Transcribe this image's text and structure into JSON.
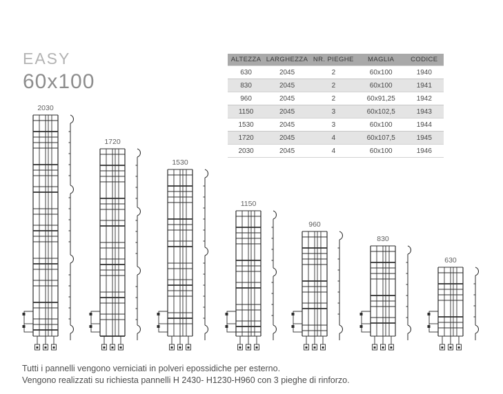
{
  "title": {
    "series": "EASY",
    "mesh": "60x100"
  },
  "table": {
    "headers": [
      "ALTEZZA",
      "LARGHEZZA",
      "NR. PIEGHE",
      "MAGLIA",
      "CODICE"
    ],
    "rows": [
      [
        "630",
        "2045",
        "2",
        "60x100",
        "1940"
      ],
      [
        "830",
        "2045",
        "2",
        "60x100",
        "1941"
      ],
      [
        "960",
        "2045",
        "2",
        "60x91,25",
        "1942"
      ],
      [
        "1150",
        "2045",
        "3",
        "60x102,5",
        "1943"
      ],
      [
        "1530",
        "2045",
        "3",
        "60x100",
        "1944"
      ],
      [
        "1720",
        "2045",
        "4",
        "60x107,5",
        "1945"
      ],
      [
        "2030",
        "2045",
        "4",
        "60x100",
        "1946"
      ]
    ]
  },
  "panels": [
    {
      "label": "2030",
      "height_mm": 2030,
      "pieghe": 4
    },
    {
      "label": "1720",
      "height_mm": 1720,
      "pieghe": 4
    },
    {
      "label": "1530",
      "height_mm": 1530,
      "pieghe": 3
    },
    {
      "label": "1150",
      "height_mm": 1150,
      "pieghe": 3
    },
    {
      "label": "960",
      "height_mm": 960,
      "pieghe": 2
    },
    {
      "label": "830",
      "height_mm": 830,
      "pieghe": 2
    },
    {
      "label": "630",
      "height_mm": 630,
      "pieghe": 2
    }
  ],
  "footer": {
    "line1": "Tutti i pannelli vengono verniciati in polveri epossidiche per esterno.",
    "line2": "Vengono realizzati su richiesta pannelli H 2430- H1230-H960 con 3 pieghe di rinforzo."
  },
  "colors": {
    "header_bg": "#a9a9a9",
    "row_alt": "#e4e4e4",
    "drawing_line": "#2b2b2b",
    "title_light": "#b3b3b3",
    "title_dark": "#8d8d8d"
  }
}
